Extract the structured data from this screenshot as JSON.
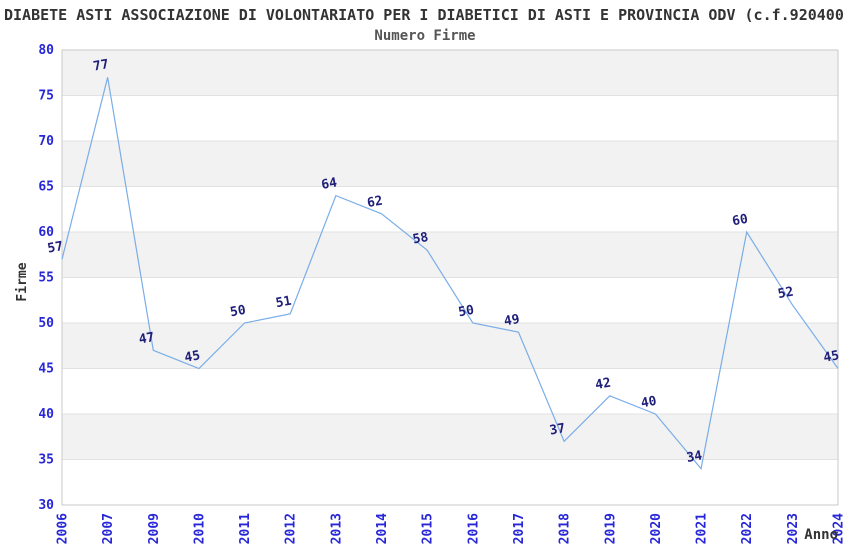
{
  "chart_data": {
    "type": "line",
    "title": "DIABETE ASTI ASSOCIAZIONE DI VOLONTARIATO PER I DIABETICI DI ASTI E PROVINCIA ODV (c.f.920400",
    "subtitle": "Numero Firme",
    "xlabel": "Anno",
    "ylabel": "Firme",
    "categories": [
      "2006",
      "2007",
      "2009",
      "2010",
      "2011",
      "2012",
      "2013",
      "2014",
      "2015",
      "2016",
      "2017",
      "2018",
      "2019",
      "2020",
      "2021",
      "2022",
      "2023",
      "2024"
    ],
    "values": [
      57,
      77,
      47,
      45,
      50,
      51,
      64,
      62,
      58,
      50,
      49,
      37,
      42,
      40,
      34,
      60,
      52,
      45
    ],
    "ylim": [
      30,
      80
    ],
    "ytick_step": 5,
    "yticks": [
      30,
      35,
      40,
      45,
      50,
      55,
      60,
      65,
      70,
      75,
      80
    ],
    "grid": "horizontal",
    "alternating_bands": true,
    "legend": "none",
    "x_tick_rotation_deg": 90,
    "data_labels_shown": true,
    "colors": {
      "line": "#7aade8",
      "band_fill": "#f2f2f2",
      "gridline": "#e2e2e2",
      "plot_border": "#c9c9c9",
      "axis_tick_label": "#2727d8",
      "data_label": "#1f1f7a",
      "title": "#333333",
      "subtitle": "#555555",
      "axis_title": "#333333",
      "background": "#ffffff"
    }
  }
}
